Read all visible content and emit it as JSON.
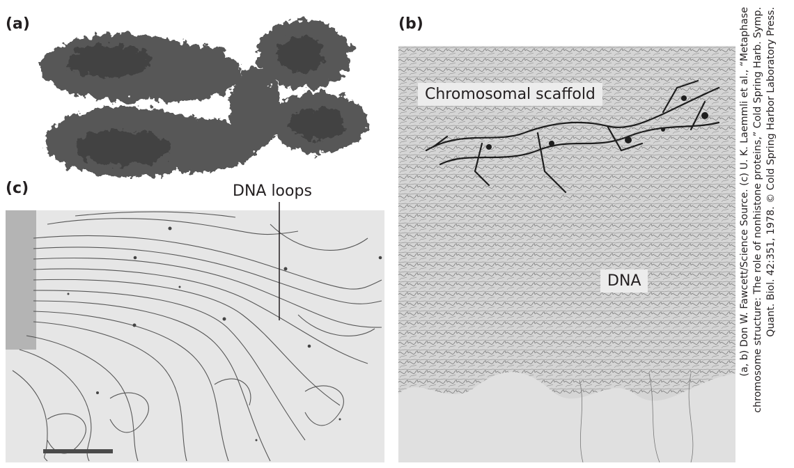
{
  "panels": {
    "a": {
      "label": "(a)",
      "image": "metaphase-chromosome-micrograph"
    },
    "b": {
      "label": "(b)",
      "image": "chromosomal-scaffold-micrograph",
      "scaffold_label": "Chromosomal scaffold",
      "dna_label": "DNA"
    },
    "c": {
      "label": "(c)",
      "image": "dna-loops-micrograph",
      "loops_label": "DNA loops"
    }
  },
  "credit": {
    "line1": "(a, b) Don W. Fawcett/Science Source. (c) U. K. Laemmli et al., “Metaphase",
    "line2": "chromosome structure: The role of nonhistone proteins,” Cold Spring Harb. Symp.",
    "line3": "Quant. Biol. 42:351, 1978. © Cold Spring Harbor Laboratory Press."
  }
}
